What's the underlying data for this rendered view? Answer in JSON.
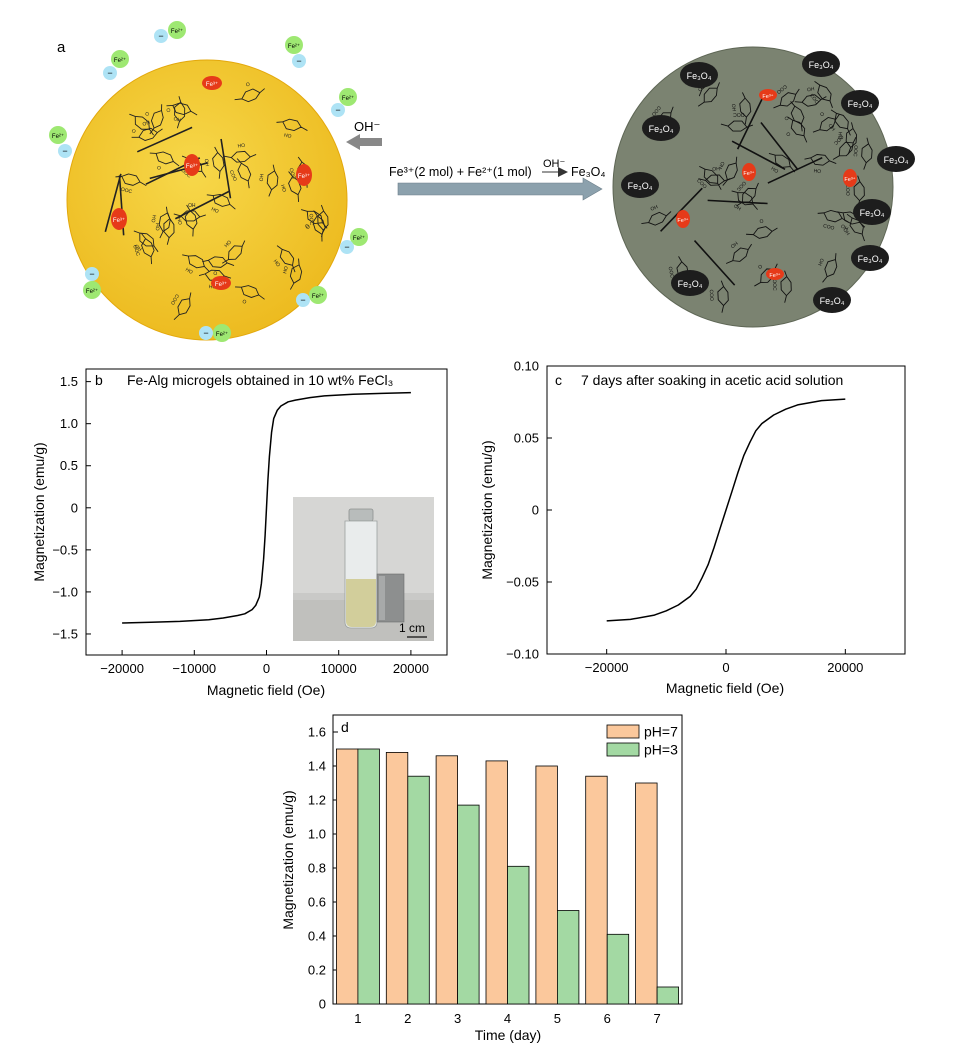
{
  "panel_a": {
    "label": "a",
    "ion_fe2": "Fe²⁺",
    "ion_fe3": "Fe³⁺",
    "minus": "−",
    "oh_label": "OH⁻",
    "reaction": "Fe³⁺(2 mol) + Fe²⁺(1 mol)",
    "reaction_catalyst": "OH⁻",
    "reaction_product": "Fe₃O₄",
    "particle_label": "Fe₃O₄",
    "glyph_labels": [
      "OH",
      "HO",
      "COO",
      "OOC",
      "O"
    ],
    "colors": {
      "gel": "#efc22a",
      "gel_edge": "#e3a80c",
      "product": "#7b8371",
      "ion": "#9ee872",
      "anion": "#aee3f5",
      "fe3": "#e63a19",
      "arrow": "#8ca1ad",
      "particle": "#1d1d1d"
    }
  },
  "chart_data": [
    {
      "panel": "b",
      "type": "line",
      "title": "Fe-Alg microgels obtained in 10 wt% FeCl₃",
      "xlabel": "Magnetic field (Oe)",
      "ylabel": "Magnetization (emu/g)",
      "xlim": [
        -25000,
        25000
      ],
      "ylim": [
        -1.75,
        1.65
      ],
      "xticks": [
        -20000,
        -10000,
        0,
        10000,
        20000
      ],
      "xtick_labels": [
        "−20000",
        "−10000",
        "0",
        "10000",
        "20000"
      ],
      "yticks": [
        1.5,
        1.0,
        0.5,
        0,
        -0.5,
        -1.0,
        -1.5
      ],
      "ytick_labels": [
        "1.5",
        "1.0",
        "0.5",
        "0",
        "−0.5",
        "−1.0",
        "−1.5"
      ],
      "series": [
        {
          "name": "M-H",
          "x": [
            -20000,
            -16000,
            -12000,
            -8000,
            -6000,
            -4000,
            -3000,
            -2000,
            -1500,
            -1000,
            -700,
            -400,
            -200,
            0,
            200,
            400,
            700,
            1000,
            1500,
            2000,
            3000,
            4000,
            6000,
            8000,
            12000,
            16000,
            20000
          ],
          "y": [
            -1.37,
            -1.36,
            -1.35,
            -1.33,
            -1.31,
            -1.28,
            -1.26,
            -1.21,
            -1.16,
            -1.06,
            -0.9,
            -0.61,
            -0.33,
            0,
            0.33,
            0.61,
            0.9,
            1.06,
            1.16,
            1.21,
            1.26,
            1.28,
            1.31,
            1.33,
            1.35,
            1.36,
            1.37
          ]
        }
      ],
      "inset": {
        "scale_label": "1 cm"
      }
    },
    {
      "panel": "c",
      "type": "line",
      "title": "7 days after soaking in acetic acid solution",
      "xlabel": "Magnetic field (Oe)",
      "ylabel": "Magnetization (emu/g)",
      "xlim": [
        -30000,
        30000
      ],
      "ylim": [
        -0.1,
        0.1
      ],
      "xticks": [
        -20000,
        0,
        20000
      ],
      "xtick_labels": [
        "−20000",
        "0",
        "20000"
      ],
      "yticks": [
        0.1,
        0.05,
        0,
        -0.05,
        -0.1
      ],
      "ytick_labels": [
        "0.10",
        "0.05",
        "0",
        "−0.05",
        "−0.10"
      ],
      "series": [
        {
          "name": "M-H",
          "x": [
            -20000,
            -16000,
            -12000,
            -10000,
            -8000,
            -6000,
            -5000,
            -4000,
            -3000,
            -2000,
            -1000,
            0,
            1000,
            2000,
            3000,
            4000,
            5000,
            6000,
            8000,
            10000,
            12000,
            16000,
            20000
          ],
          "y": [
            -0.077,
            -0.076,
            -0.073,
            -0.07,
            -0.066,
            -0.06,
            -0.055,
            -0.047,
            -0.038,
            -0.026,
            -0.013,
            0,
            0.013,
            0.026,
            0.038,
            0.047,
            0.055,
            0.06,
            0.066,
            0.07,
            0.073,
            0.076,
            0.077
          ]
        }
      ]
    },
    {
      "panel": "d",
      "type": "bar",
      "xlabel": "Time (day)",
      "ylabel": "Magnetization (emu/g)",
      "categories": [
        "1",
        "2",
        "3",
        "4",
        "5",
        "6",
        "7"
      ],
      "ylim": [
        0,
        1.7
      ],
      "yticks": [
        0,
        0.2,
        0.4,
        0.6,
        0.8,
        1.0,
        1.2,
        1.4,
        1.6
      ],
      "ytick_labels": [
        "0",
        "0.2",
        "0.4",
        "0.6",
        "0.8",
        "1.0",
        "1.2",
        "1.4",
        "1.6"
      ],
      "legend": "top-right",
      "series": [
        {
          "name": "pH=7",
          "color": "#fbc89c",
          "values": [
            1.5,
            1.48,
            1.46,
            1.43,
            1.4,
            1.34,
            1.3
          ]
        },
        {
          "name": "pH=3",
          "color": "#a3d9a3",
          "values": [
            1.5,
            1.34,
            1.17,
            0.81,
            0.55,
            0.41,
            0.1
          ]
        }
      ]
    }
  ]
}
